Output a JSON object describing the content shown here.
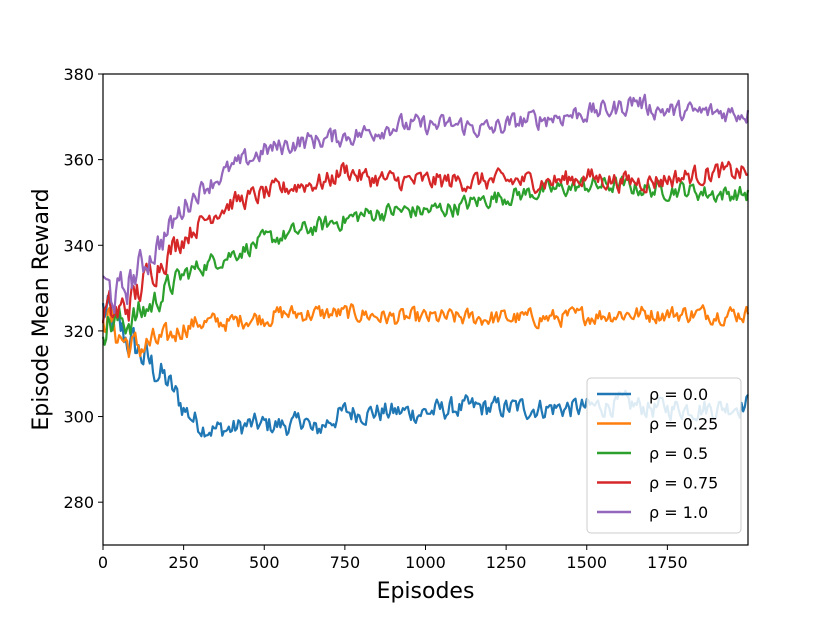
{
  "chart_data": {
    "type": "line",
    "xlabel": "Episodes",
    "ylabel": "Episode Mean Reward",
    "xlim": [
      0,
      2000
    ],
    "ylim": [
      270,
      380
    ],
    "xticks": [
      0,
      250,
      500,
      750,
      1000,
      1250,
      1500,
      1750
    ],
    "yticks": [
      280,
      300,
      320,
      340,
      360,
      380
    ],
    "grid": false,
    "legend_position": "lower-right",
    "series": [
      {
        "name": "ρ = 0.0",
        "color": "#1f77b4",
        "noise": 2.2,
        "x": [
          0,
          25,
          50,
          75,
          100,
          150,
          200,
          250,
          300,
          350,
          400,
          450,
          500,
          550,
          600,
          625,
          650,
          700,
          750,
          800,
          900,
          1000,
          1100,
          1200,
          1300,
          1400,
          1500,
          1600,
          1700,
          1800,
          1900,
          2000
        ],
        "y": [
          325,
          322,
          320,
          318,
          316,
          312,
          308,
          302,
          298,
          297,
          297,
          298,
          298,
          298,
          298,
          300,
          296,
          299,
          301,
          301,
          301,
          301,
          302,
          302,
          302,
          302,
          302,
          303,
          302,
          302,
          302,
          303
        ]
      },
      {
        "name": "ρ = 0.25",
        "color": "#ff7f0e",
        "noise": 1.8,
        "x": [
          0,
          25,
          50,
          75,
          100,
          150,
          200,
          250,
          300,
          350,
          400,
          450,
          500,
          550,
          600,
          700,
          800,
          900,
          1000,
          1200,
          1400,
          1600,
          1800,
          2000
        ],
        "y": [
          325,
          322,
          319,
          317,
          316,
          317,
          318,
          321,
          322,
          322,
          322,
          323,
          323,
          324,
          324,
          324,
          324,
          323,
          323,
          323,
          323,
          324,
          324,
          324
        ]
      },
      {
        "name": "ρ = 0.5",
        "color": "#2ca02c",
        "noise": 1.8,
        "x": [
          0,
          50,
          100,
          150,
          200,
          250,
          300,
          400,
          500,
          600,
          700,
          800,
          900,
          1000,
          1100,
          1200,
          1300,
          1400,
          1500,
          1600,
          1700,
          1800,
          1900,
          2000
        ],
        "y": [
          322,
          322,
          323,
          326,
          330,
          333,
          335,
          338,
          341,
          343,
          345,
          347,
          348,
          348,
          349,
          351,
          352,
          353,
          354,
          354,
          353,
          353,
          352,
          352
        ]
      },
      {
        "name": "ρ = 0.75",
        "color": "#d62728",
        "noise": 2.0,
        "x": [
          0,
          50,
          100,
          150,
          200,
          250,
          300,
          350,
          400,
          500,
          600,
          700,
          750,
          800,
          900,
          1000,
          1100,
          1200,
          1300,
          1400,
          1500,
          1600,
          1700,
          1800,
          1900,
          2000
        ],
        "y": [
          324,
          324,
          328,
          334,
          338,
          342,
          345,
          348,
          350,
          352,
          354,
          355,
          358,
          356,
          355,
          355,
          355,
          355,
          355,
          355,
          356,
          355,
          355,
          356,
          357,
          357
        ]
      },
      {
        "name": "ρ = 1.0",
        "color": "#9467bd",
        "noise": 2.0,
        "x": [
          0,
          50,
          100,
          150,
          200,
          250,
          300,
          400,
          500,
          600,
          700,
          800,
          900,
          1000,
          1100,
          1200,
          1300,
          1400,
          1500,
          1600,
          1650,
          1700,
          1800,
          1900,
          2000
        ],
        "y": [
          330,
          328,
          333,
          338,
          343,
          349,
          353,
          358,
          362,
          364,
          365,
          366,
          368,
          368,
          368,
          367,
          369,
          370,
          371,
          372,
          374,
          372,
          371,
          371,
          371
        ]
      }
    ]
  }
}
